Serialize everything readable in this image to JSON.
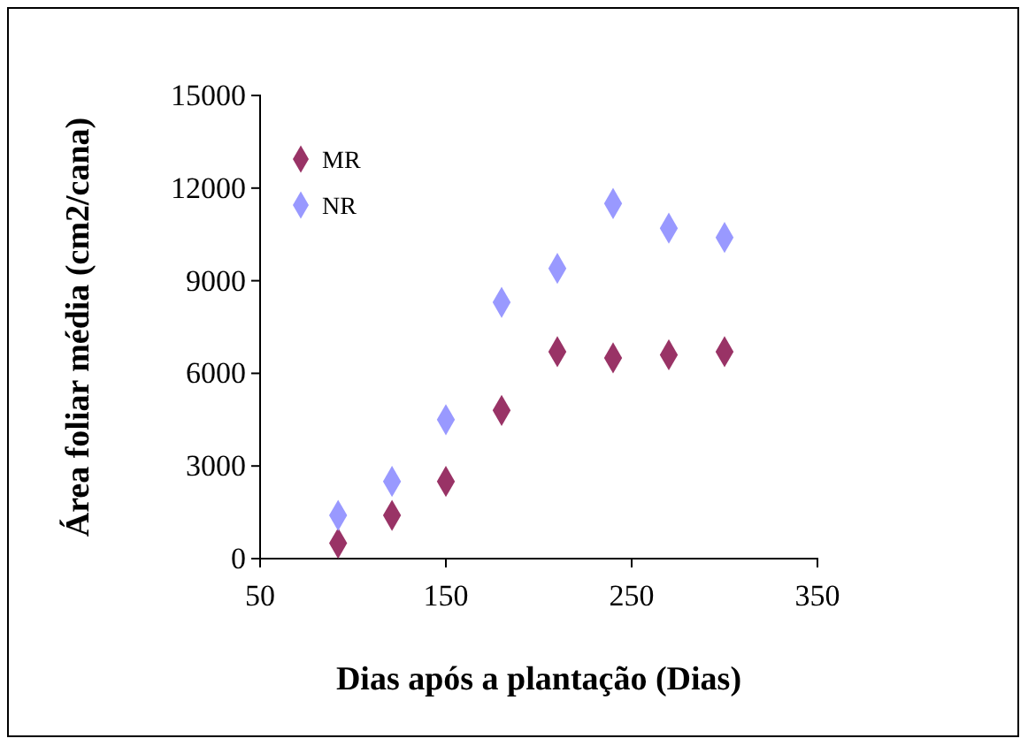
{
  "chart_data": {
    "type": "scatter",
    "xlabel": "Dias após a plantação  (Dias)",
    "ylabel": "Área foliar média (cm2/cana)",
    "x": [
      92,
      121,
      150,
      180,
      210,
      240,
      270,
      300
    ],
    "series": [
      {
        "name": "MR",
        "color": "#993366",
        "values": [
          500,
          1400,
          2500,
          4800,
          6700,
          6500,
          6600,
          6700
        ]
      },
      {
        "name": "NR",
        "color": "#9999ff",
        "values": [
          1400,
          2500,
          4500,
          8300,
          9400,
          11500,
          10700,
          10400
        ]
      }
    ],
    "xlim": [
      50,
      350
    ],
    "xticks": [
      50,
      150,
      250,
      350
    ],
    "ylim": [
      0,
      15000
    ],
    "yticks": [
      0,
      3000,
      6000,
      9000,
      12000,
      15000
    ],
    "grid": false,
    "legend": "top left",
    "marker": "diamond"
  }
}
